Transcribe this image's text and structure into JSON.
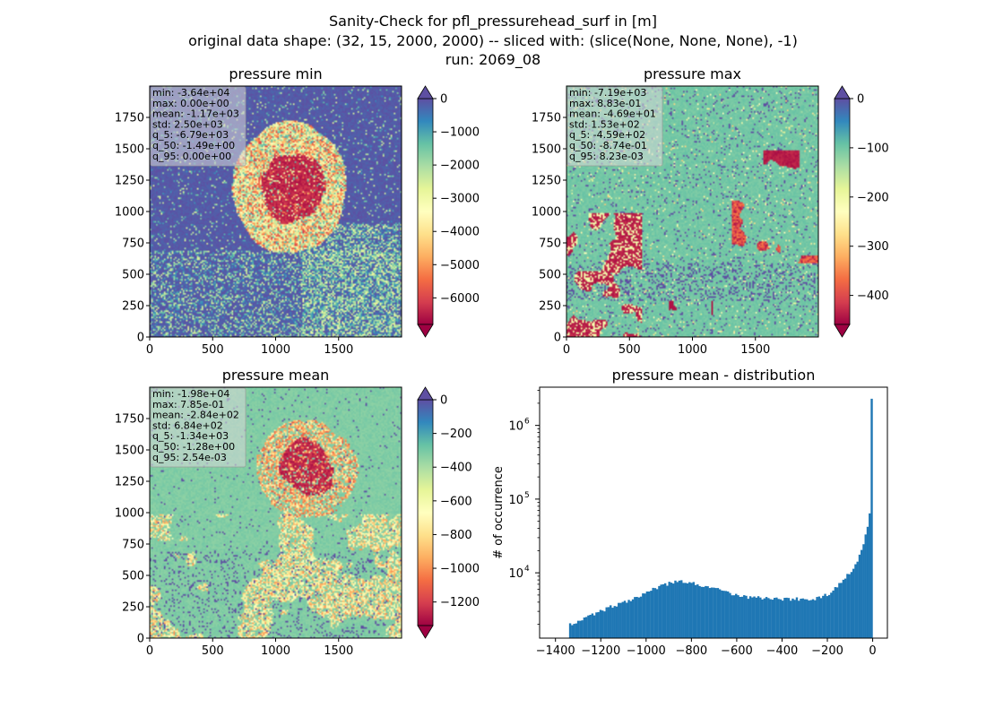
{
  "figure": {
    "suptitle_lines": [
      "Sanity-Check for pfl_pressurehead_surf in [m]",
      "original data shape: (32, 15, 2000, 2000) -- sliced with: (slice(None, None, None), -1)",
      "run: 2069_08"
    ]
  },
  "colors": {
    "spectral": [
      "#9e0142",
      "#d53e4f",
      "#f46d43",
      "#fdae61",
      "#fee08b",
      "#ffffbf",
      "#e6f598",
      "#abdda4",
      "#66c2a5",
      "#3288bd",
      "#5e4fa2"
    ],
    "histogram_bar": "#1f77b4",
    "stat_box": "#d8d8d8"
  },
  "chart_data": [
    {
      "type": "heatmap",
      "title": "pressure min",
      "x_ticks": [
        "0",
        "500",
        "1000",
        "1500"
      ],
      "y_ticks": [
        "0",
        "250",
        "500",
        "750",
        "1000",
        "1250",
        "1500",
        "1750"
      ],
      "xlim": [
        0,
        2000
      ],
      "ylim": [
        0,
        2000
      ],
      "colormap": "Spectral",
      "colorbar": {
        "range": [
          -6800,
          0
        ],
        "ticks": [
          "0",
          "−1000",
          "−2000",
          "−3000",
          "−4000",
          "−5000",
          "−6000"
        ],
        "extend": "both"
      },
      "stats": [
        "min: -3.64e+04",
        "max: 0.00e+00",
        "mean: -1.17e+03",
        "std: 2.50e+03",
        "q_5: -6.79e+03",
        "q_50: -1.49e+00",
        "q_95: 0.00e+00"
      ]
    },
    {
      "type": "heatmap",
      "title": "pressure max",
      "x_ticks": [
        "0",
        "500",
        "1000",
        "1500"
      ],
      "y_ticks": [
        "0",
        "250",
        "500",
        "750",
        "1000",
        "1250",
        "1500",
        "1750"
      ],
      "xlim": [
        0,
        2000
      ],
      "ylim": [
        0,
        2000
      ],
      "colormap": "Spectral",
      "colorbar": {
        "range": [
          -459,
          0
        ],
        "ticks": [
          "0",
          "−100",
          "−200",
          "−300",
          "−400"
        ],
        "extend": "both"
      },
      "stats": [
        "min: -7.19e+03",
        "max: 8.83e-01",
        "mean: -4.69e+01",
        "std: 1.53e+02",
        "q_5: -4.59e+02",
        "q_50: -8.74e-01",
        "q_95: 8.23e-03"
      ]
    },
    {
      "type": "heatmap",
      "title": "pressure mean",
      "x_ticks": [
        "0",
        "500",
        "1000",
        "1500"
      ],
      "y_ticks": [
        "0",
        "250",
        "500",
        "750",
        "1000",
        "1250",
        "1500",
        "1750"
      ],
      "xlim": [
        0,
        2000
      ],
      "ylim": [
        0,
        2000
      ],
      "colormap": "Spectral",
      "colorbar": {
        "range": [
          -1340,
          0
        ],
        "ticks": [
          "0",
          "−200",
          "−400",
          "−600",
          "−800",
          "−1000",
          "−1200"
        ],
        "extend": "both"
      },
      "stats": [
        "min: -1.98e+04",
        "max: 7.85e-01",
        "mean: -2.84e+02",
        "std: 6.84e+02",
        "q_5: -1.34e+03",
        "q_50: -1.28e+00",
        "q_95: 2.54e-03"
      ]
    },
    {
      "type": "bar",
      "title": "pressure mean - distribution",
      "ylabel": "# of occurrence",
      "xlabel": "",
      "y_scale": "log",
      "x_ticks": [
        "−1400",
        "−1200",
        "−1000",
        "−800",
        "−600",
        "−400",
        "−200",
        "0"
      ],
      "y_ticks": [
        "10^4",
        "10^5",
        "10^6"
      ],
      "xlim": [
        -1470,
        65
      ],
      "ylim": [
        1300,
        3300000
      ],
      "bins": {
        "start": -1340,
        "end": 0,
        "count": 150
      },
      "envelope": [
        [
          -1340,
          2000
        ],
        [
          -1300,
          2200
        ],
        [
          -1250,
          2600
        ],
        [
          -1200,
          3000
        ],
        [
          -1150,
          3500
        ],
        [
          -1100,
          4000
        ],
        [
          -1050,
          4600
        ],
        [
          -1000,
          5400
        ],
        [
          -950,
          6300
        ],
        [
          -900,
          7100
        ],
        [
          -860,
          7700
        ],
        [
          -840,
          7600
        ],
        [
          -800,
          7300
        ],
        [
          -750,
          6700
        ],
        [
          -700,
          6100
        ],
        [
          -650,
          5500
        ],
        [
          -600,
          5000
        ],
        [
          -550,
          4700
        ],
        [
          -500,
          4600
        ],
        [
          -450,
          4500
        ],
        [
          -400,
          4400
        ],
        [
          -350,
          4400
        ],
        [
          -300,
          4400
        ],
        [
          -250,
          4500
        ],
        [
          -200,
          5000
        ],
        [
          -150,
          7000
        ],
        [
          -100,
          10000
        ],
        [
          -60,
          16000
        ],
        [
          -40,
          25000
        ],
        [
          -25,
          40000
        ],
        [
          -12,
          65000
        ],
        [
          -5,
          50000
        ],
        [
          -2,
          2300000
        ],
        [
          0,
          2300000
        ]
      ]
    }
  ]
}
